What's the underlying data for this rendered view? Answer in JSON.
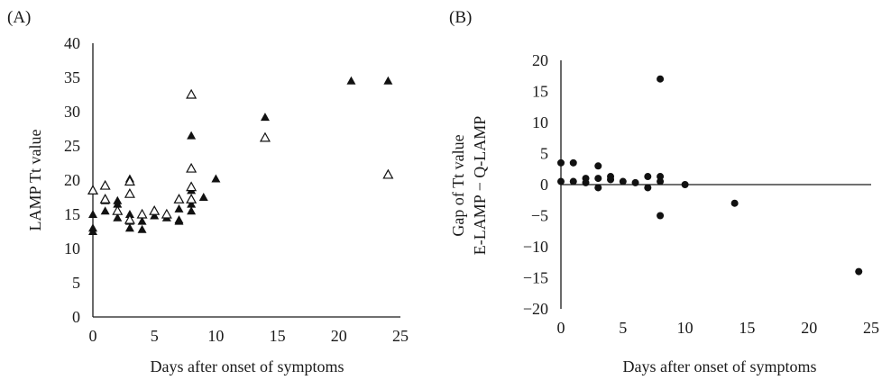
{
  "chart_data": [
    {
      "panel_label": "(A)",
      "type": "scatter",
      "xlabel": "Days after onset of symptoms",
      "ylabel": "LAMP Tt value",
      "xlim": [
        0,
        25
      ],
      "ylim": [
        0,
        40
      ],
      "xticks": [
        0,
        5,
        10,
        15,
        20,
        25
      ],
      "yticks": [
        0,
        5,
        10,
        15,
        20,
        25,
        30,
        35,
        40
      ],
      "grid": false,
      "legend": "none",
      "series": [
        {
          "marker": "filled-triangle",
          "color": "#111111",
          "points": [
            [
              0,
              15.0
            ],
            [
              0,
              13.0
            ],
            [
              0,
              12.5
            ],
            [
              1,
              17.0
            ],
            [
              1,
              15.5
            ],
            [
              2,
              17.0
            ],
            [
              2,
              16.5
            ],
            [
              2,
              14.5
            ],
            [
              3,
              20.2
            ],
            [
              3,
              15.0
            ],
            [
              3,
              14.0
            ],
            [
              3,
              13.0
            ],
            [
              4,
              14.0
            ],
            [
              4,
              12.8
            ],
            [
              5,
              14.8
            ],
            [
              6,
              14.5
            ],
            [
              7,
              14.2
            ],
            [
              7,
              14.0
            ],
            [
              7,
              15.8
            ],
            [
              8,
              26.5
            ],
            [
              8,
              18.5
            ],
            [
              8,
              16.5
            ],
            [
              8,
              15.5
            ],
            [
              9,
              17.5
            ],
            [
              10,
              20.2
            ],
            [
              14,
              29.2
            ],
            [
              21,
              34.5
            ],
            [
              24,
              34.5
            ]
          ]
        },
        {
          "marker": "open-triangle",
          "color": "#111111",
          "points": [
            [
              0,
              18.5
            ],
            [
              1,
              19.2
            ],
            [
              1,
              17.2
            ],
            [
              2,
              15.5
            ],
            [
              3,
              19.8
            ],
            [
              3,
              18.0
            ],
            [
              3,
              14.2
            ],
            [
              4,
              15.0
            ],
            [
              5,
              15.5
            ],
            [
              6,
              15.0
            ],
            [
              7,
              17.2
            ],
            [
              8,
              32.5
            ],
            [
              8,
              21.7
            ],
            [
              8,
              19.0
            ],
            [
              8,
              17.2
            ],
            [
              14,
              26.2
            ],
            [
              24,
              20.8
            ]
          ]
        }
      ]
    },
    {
      "panel_label": "(B)",
      "type": "scatter",
      "xlabel": "Days after onset of symptoms",
      "ylabel_lines": [
        "Gap of Tt value",
        "E-LAMP − Q-LAMP"
      ],
      "xlim": [
        0,
        25
      ],
      "ylim": [
        -20,
        20
      ],
      "xticks": [
        0,
        5,
        10,
        15,
        20,
        25
      ],
      "yticks": [
        20,
        15,
        10,
        5,
        0,
        -5,
        -10,
        -15,
        -20
      ],
      "ytick_labels": [
        "20",
        "15",
        "10",
        "5",
        "0",
        "−5",
        "−10",
        "−15",
        "−20"
      ],
      "x_axis_at_y": 0,
      "grid": false,
      "legend": "none",
      "series": [
        {
          "marker": "filled-circle",
          "color": "#111111",
          "points": [
            [
              0,
              3.5
            ],
            [
              0,
              0.5
            ],
            [
              1,
              3.5
            ],
            [
              1,
              0.5
            ],
            [
              2,
              1.0
            ],
            [
              2,
              0.3
            ],
            [
              3,
              3.0
            ],
            [
              3,
              1.0
            ],
            [
              3,
              -0.5
            ],
            [
              4,
              1.3
            ],
            [
              4,
              0.8
            ],
            [
              5,
              0.5
            ],
            [
              6,
              0.3
            ],
            [
              7,
              1.3
            ],
            [
              7,
              -0.5
            ],
            [
              8,
              17.0
            ],
            [
              8,
              1.3
            ],
            [
              8,
              0.5
            ],
            [
              8,
              -5.0
            ],
            [
              10,
              0.0
            ],
            [
              14,
              -3.0
            ],
            [
              24,
              -14.0
            ]
          ]
        }
      ]
    }
  ]
}
